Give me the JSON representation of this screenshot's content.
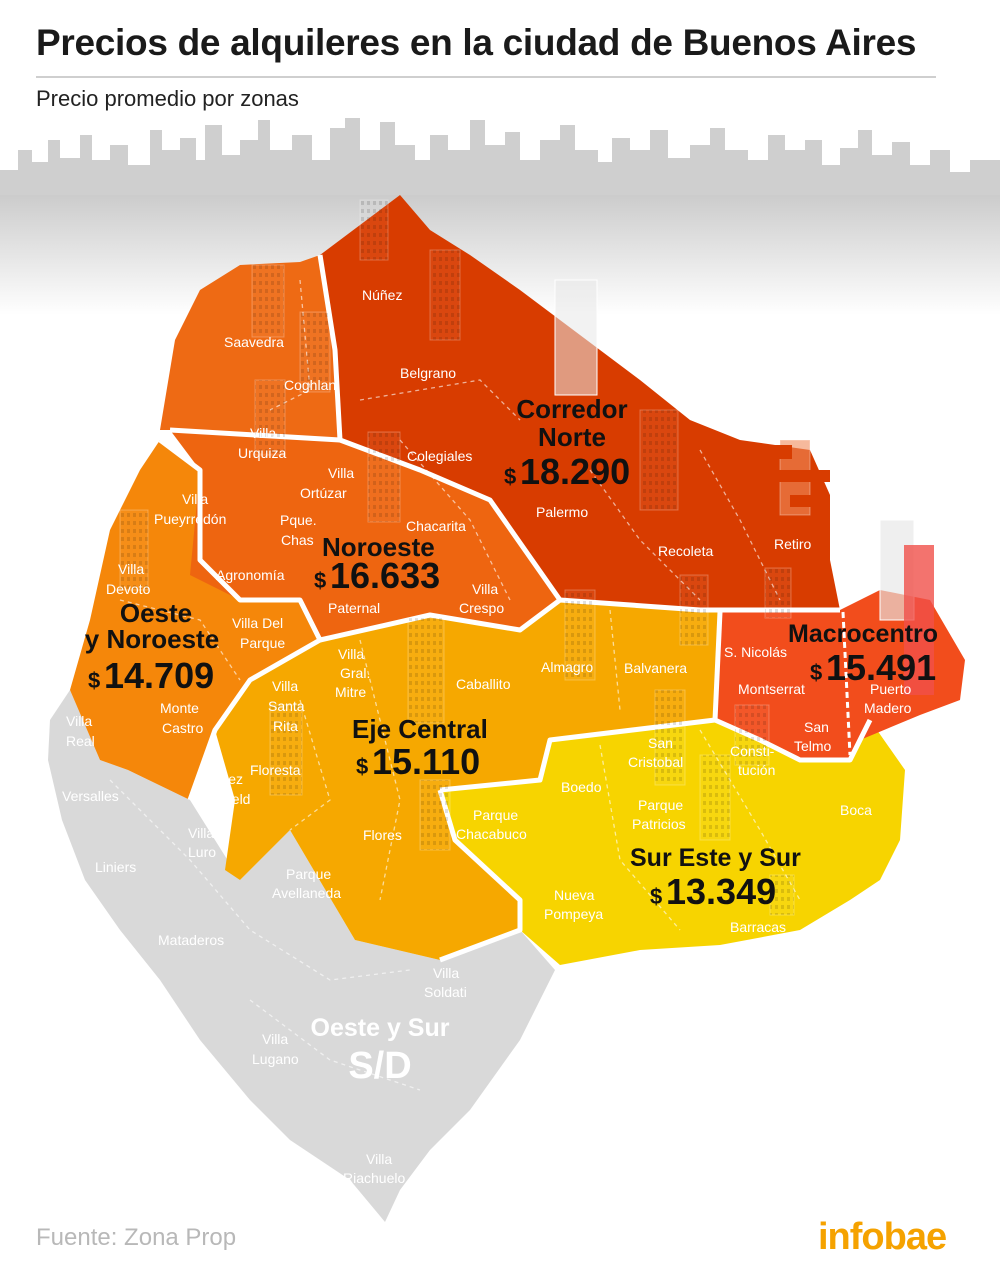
{
  "header": {
    "title": "Precios de alquileres en la ciudad de Buenos Aires",
    "subtitle": "Precio promedio por zonas"
  },
  "colors": {
    "corredor_norte": "#d83c00",
    "noroeste": "#ee6510",
    "oeste_noroeste": "#f5870a",
    "eje_central": "#f6a800",
    "sur_este_sur": "#f7d400",
    "macrocentro": "#f24d1c",
    "no_data": "#d9d9d9",
    "brand": "#f5a200"
  },
  "zones": {
    "corredor_norte": {
      "name_line1": "Corredor",
      "name_line2": "Norte",
      "currency": "$",
      "price": "18.290"
    },
    "noroeste": {
      "name": "Noroeste",
      "currency": "$",
      "price": "16.633"
    },
    "oeste_noroeste": {
      "name_line1": "Oeste",
      "name_line2": "y Noroeste",
      "currency": "$",
      "price": "14.709"
    },
    "macrocentro": {
      "name": "Macrocentro",
      "currency": "$",
      "price": "15.491"
    },
    "eje_central": {
      "name": "Eje Central",
      "currency": "$",
      "price": "15.110"
    },
    "sur_este_sur": {
      "name": "Sur Este y Sur",
      "currency": "$",
      "price": "13.349"
    },
    "oeste_sur": {
      "name": "Oeste y Sur",
      "value": "S/D"
    }
  },
  "neighborhoods": {
    "nunez": "Núñez",
    "saavedra": "Saavedra",
    "coghlan": "Coghlan",
    "belgrano": "Belgrano",
    "villa_urquiza_1": "Villa",
    "villa_urquiza_2": "Urquiza",
    "colegiales": "Colegiales",
    "villa_ortuzar_1": "Villa",
    "villa_ortuzar_2": "Ortúzar",
    "villa_pueyrredon_1": "Villa",
    "villa_pueyrredon_2": "Pueyrredón",
    "pque_chas_1": "Pque.",
    "pque_chas_2": "Chas",
    "chacarita": "Chacarita",
    "palermo": "Palermo",
    "recoleta": "Recoleta",
    "retiro": "Retiro",
    "villa_devoto_1": "Villa",
    "villa_devoto_2": "Devoto",
    "agronomia": "Agronomía",
    "paternal": "Paternal",
    "villa_crespo_1": "Villa",
    "villa_crespo_2": "Crespo",
    "villa_del_parque_1": "Villa Del",
    "villa_del_parque_2": "Parque",
    "almagro": "Almagro",
    "balvanera": "Balvanera",
    "s_nicolas": "S. Nicolás",
    "montserrat": "Montserrat",
    "puerto_madero_1": "Puerto",
    "puerto_madero_2": "Madero",
    "villa_gral_mitre_1": "Villa",
    "villa_gral_mitre_2": "Gral.",
    "villa_gral_mitre_3": "Mitre",
    "caballito": "Caballito",
    "villa_santa_rita_1": "Villa",
    "villa_santa_rita_2": "Santa",
    "villa_santa_rita_3": "Rita",
    "monte_castro_1": "Monte",
    "monte_castro_2": "Castro",
    "villa_real_1": "Villa",
    "villa_real_2": "Real",
    "san_telmo_1": "San",
    "san_telmo_2": "Telmo",
    "san_cristobal_1": "San",
    "san_cristobal_2": "Cristobal",
    "constitucion_1": "Consti-",
    "constitucion_2": "tución",
    "floresta": "Floresta",
    "velez_sarsfield_1": "Vélez",
    "velez_sarsfield_2": "Sársfield",
    "versalles": "Versalles",
    "villa_luro_1": "Villa",
    "villa_luro_2": "Luro",
    "boedo": "Boedo",
    "boca": "Boca",
    "liniers": "Liniers",
    "flores": "Flores",
    "parque_chacabuco_1": "Parque",
    "parque_chacabuco_2": "Chacabuco",
    "parque_patricios_1": "Parque",
    "parque_patricios_2": "Patricios",
    "parque_avellaneda_1": "Parque",
    "parque_avellaneda_2": "Avellaneda",
    "nueva_pompeya_1": "Nueva",
    "nueva_pompeya_2": "Pompeya",
    "barracas": "Barracas",
    "mataderos": "Mataderos",
    "villa_soldati_1": "Villa",
    "villa_soldati_2": "Soldati",
    "villa_lugano_1": "Villa",
    "villa_lugano_2": "Lugano",
    "villa_riachuelo_1": "Villa",
    "villa_riachuelo_2": "Riachuelo"
  },
  "footer": {
    "source": "Fuente: Zona Prop",
    "brand": "infobae"
  }
}
